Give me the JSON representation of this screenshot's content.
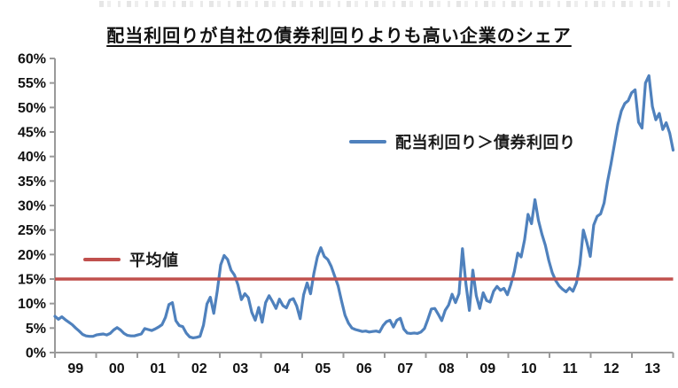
{
  "title": "配当利回りが自社の債券利回りよりも高い企業のシェア",
  "colors": {
    "series_blue": "#4F81BD",
    "average_red": "#C0504D",
    "axis_gray": "#9a9a9a",
    "label_black": "#1a1a1a"
  },
  "legend": {
    "series_label": "配当利回り＞債券利回り",
    "average_label": "平均値"
  },
  "chart_data": {
    "type": "line",
    "title": "配当利回りが自社の債券利回りよりも高い企業のシェア",
    "xlabel": "",
    "ylabel": "",
    "grid": false,
    "ylim": [
      0,
      60
    ],
    "y_tick_step_percent": 5,
    "y_tick_labels": [
      "0%",
      "5%",
      "10%",
      "15%",
      "20%",
      "25%",
      "30%",
      "35%",
      "40%",
      "45%",
      "50%",
      "55%",
      "60%"
    ],
    "x_years": [
      "99",
      "00",
      "01",
      "02",
      "03",
      "04",
      "05",
      "06",
      "07",
      "08",
      "09",
      "10",
      "11",
      "12",
      "13"
    ],
    "frequency": "monthly",
    "legend_position": "inside",
    "series": [
      {
        "name": "配当利回り＞債券利回り",
        "color": "#4F81BD",
        "type": "line",
        "start": "1999-01",
        "end": "2013-12",
        "values_percent": [
          7.4,
          6.8,
          7.3,
          6.7,
          6.2,
          5.7,
          5.0,
          4.4,
          3.7,
          3.4,
          3.3,
          3.3,
          3.6,
          3.7,
          3.8,
          3.6,
          3.9,
          4.6,
          5.1,
          4.6,
          3.9,
          3.5,
          3.4,
          3.4,
          3.6,
          3.8,
          4.9,
          4.7,
          4.5,
          4.8,
          5.2,
          5.7,
          7.2,
          9.8,
          10.2,
          6.5,
          5.5,
          5.3,
          4.0,
          3.2,
          3.0,
          3.1,
          3.3,
          5.6,
          9.9,
          11.3,
          8.0,
          12.5,
          17.9,
          19.8,
          19.0,
          16.8,
          15.8,
          13.8,
          10.8,
          12.0,
          11.2,
          8.2,
          6.6,
          9.2,
          6.2,
          10.2,
          11.6,
          10.4,
          9.0,
          10.9,
          9.6,
          9.1,
          10.7,
          11.0,
          9.5,
          6.9,
          11.8,
          14.2,
          12.0,
          16.2,
          19.5,
          21.4,
          19.6,
          19.0,
          17.6,
          15.6,
          13.6,
          10.5,
          7.6,
          6.0,
          5.0,
          4.7,
          4.5,
          4.3,
          4.4,
          4.2,
          4.3,
          4.4,
          4.2,
          5.5,
          6.3,
          6.6,
          5.2,
          6.6,
          7.0,
          4.8,
          4.0,
          3.9,
          4.0,
          3.9,
          4.2,
          4.9,
          6.8,
          8.9,
          9.0,
          7.8,
          6.5,
          8.6,
          9.7,
          11.9,
          10.2,
          12.0,
          21.2,
          14.0,
          8.6,
          16.8,
          11.6,
          9.0,
          12.2,
          10.6,
          10.3,
          12.5,
          13.5,
          12.7,
          13.1,
          11.8,
          13.9,
          16.5,
          20.3,
          19.5,
          23.0,
          28.2,
          26.3,
          31.2,
          27.0,
          24.2,
          21.9,
          18.8,
          16.3,
          14.7,
          13.6,
          12.9,
          12.4,
          13.2,
          12.5,
          14.2,
          18.0,
          25.0,
          22.5,
          19.6,
          26.0,
          27.8,
          28.3,
          30.5,
          34.9,
          38.5,
          42.5,
          46.5,
          49.3,
          50.8,
          51.4,
          53.0,
          53.6,
          47.0,
          45.8,
          55.0,
          56.5,
          50.2,
          47.5,
          48.8,
          45.5,
          46.9,
          44.8,
          41.3
        ]
      },
      {
        "name": "平均値",
        "color": "#C0504D",
        "type": "hline",
        "value_percent": 15
      }
    ]
  }
}
